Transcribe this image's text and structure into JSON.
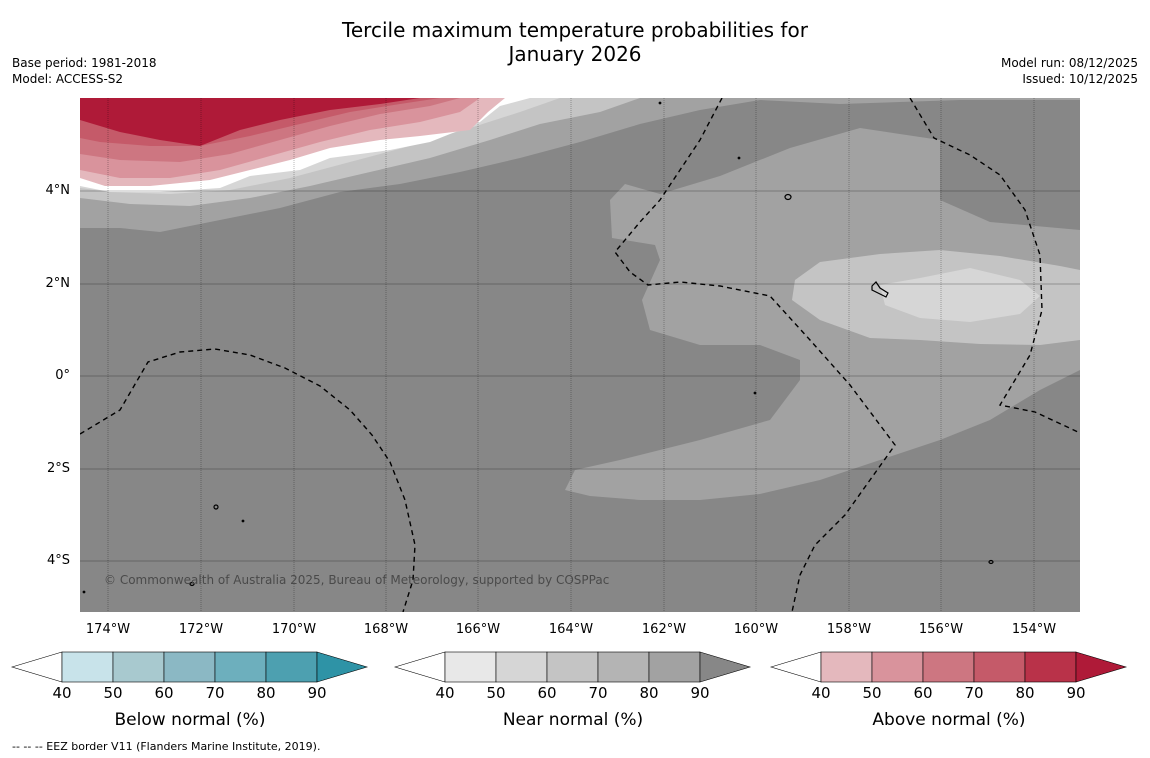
{
  "title": {
    "line1": "Tercile maximum temperature probabilities for",
    "line2": "January 2026"
  },
  "meta_left": {
    "base_period": "Base period: 1981-2018",
    "model": "Model: ACCESS-S2"
  },
  "meta_right": {
    "model_run": "Model run: 08/12/2025",
    "issued": "Issued: 10/12/2025"
  },
  "copyright": "© Commonwealth of Australia 2025, Bureau of Meteorology, supported by COSPPac",
  "footer": "--  --  -- EEZ border V11 (Flanders Marine Institute, 2019).",
  "axes": {
    "lat_labels": [
      "4°N",
      "2°N",
      "0°",
      "2°S",
      "4°S"
    ],
    "lon_labels": [
      "174°W",
      "172°W",
      "170°W",
      "168°W",
      "166°W",
      "164°W",
      "162°W",
      "160°W",
      "158°W",
      "156°W",
      "154°W"
    ]
  },
  "colorbars": [
    {
      "title": "Below normal (%)",
      "ticks": [
        "40",
        "50",
        "60",
        "70",
        "80",
        "90"
      ],
      "colors": [
        "#ffffff",
        "#c8e3ea",
        "#a8c9cf",
        "#8bb8c4",
        "#6dafbd",
        "#4da0b0",
        "#2e93a6"
      ]
    },
    {
      "title": "Near normal (%)",
      "ticks": [
        "40",
        "50",
        "60",
        "70",
        "80",
        "90"
      ],
      "colors": [
        "#ffffff",
        "#e8e8e8",
        "#d6d6d6",
        "#c4c4c4",
        "#b4b4b4",
        "#a2a2a2",
        "#878787"
      ]
    },
    {
      "title": "Above normal (%)",
      "ticks": [
        "40",
        "50",
        "60",
        "70",
        "80",
        "90"
      ],
      "colors": [
        "#ffffff",
        "#e4b8bd",
        "#d9939c",
        "#cd7681",
        "#c55a69",
        "#b93249",
        "#af1a38"
      ]
    }
  ],
  "map_colors": {
    "near_90": "#878787",
    "near_80": "#a2a2a2",
    "near_70": "#c4c4c4",
    "near_60": "#d6d6d6",
    "above_50": "#e4b8bd",
    "above_60": "#d9939c",
    "above_70": "#cd7681",
    "above_80": "#c55a69",
    "above_90": "#af1a38"
  }
}
